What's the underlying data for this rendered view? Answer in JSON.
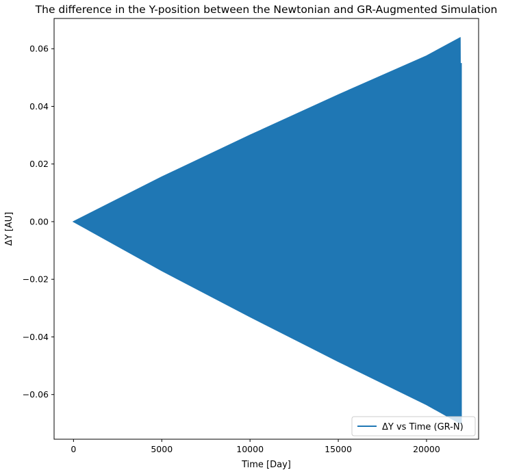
{
  "chart_data": {
    "type": "line",
    "title": "The difference in the Y-position between the Newtonian and GR-Augmented Simulation",
    "xlabel": "Time [Day]",
    "ylabel": "ΔY [AU]",
    "xlim": [
      -1100,
      22950
    ],
    "ylim": [
      -0.0755,
      0.0705
    ],
    "xticks": [
      0,
      5000,
      10000,
      15000,
      20000
    ],
    "xtick_labels": [
      "0",
      "5000",
      "10000",
      "15000",
      "20000"
    ],
    "yticks": [
      -0.06,
      -0.04,
      -0.02,
      0.0,
      0.02,
      0.04,
      0.06
    ],
    "ytick_labels": [
      "−0.06",
      "−0.04",
      "−0.02",
      "0.00",
      "0.02",
      "0.04",
      "0.06"
    ],
    "grid": false,
    "legend_position": "lower-right",
    "series": [
      {
        "name": "ΔY vs Time (GR-N)",
        "color": "#1f77b4",
        "envelope": {
          "x": [
            0,
            5000,
            10000,
            15000,
            20000,
            21900
          ],
          "upper": [
            0,
            0.0155,
            0.03,
            0.044,
            0.0575,
            0.0638
          ],
          "lower": [
            0,
            -0.017,
            -0.033,
            -0.0485,
            -0.0635,
            -0.07
          ]
        },
        "tail": [
          {
            "x": 21890,
            "y": 0.0638
          },
          {
            "x": 21900,
            "y": 0.0548
          },
          {
            "x": 21960,
            "y": 0.0548
          },
          {
            "x": 21960,
            "y": -0.07
          }
        ]
      }
    ]
  }
}
